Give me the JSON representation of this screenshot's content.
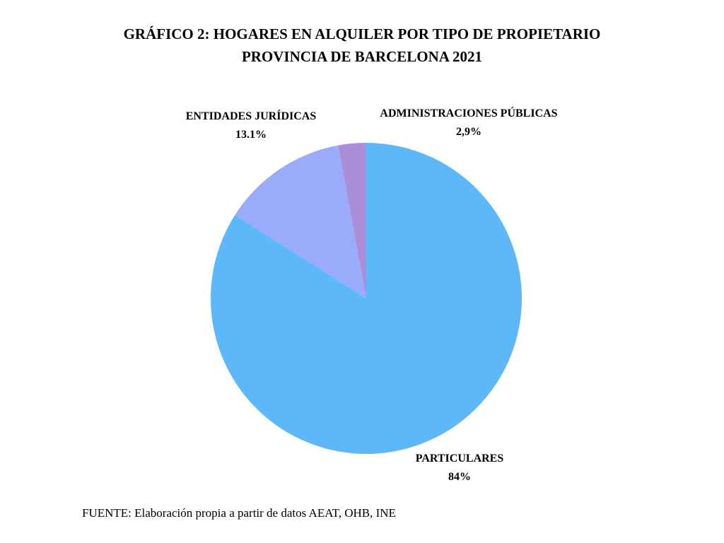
{
  "chart_data": {
    "type": "pie",
    "title": [
      "GRÁFICO 2: HOGARES EN ALQUILER POR TIPO DE PROPIETARIO",
      "PROVINCIA DE BARCELONA 2021"
    ],
    "start_angle_deg": 0,
    "direction": "clockwise",
    "slices": [
      {
        "name": "PARTICULARES",
        "value": 84,
        "label_value": "84%",
        "color": "#5cb8f8"
      },
      {
        "name": "ENTIDADES JURÍDICAS",
        "value": 13.1,
        "label_value": "13.1%",
        "color": "#9aabfb"
      },
      {
        "name": "ADMINISTRACIONES PÚBLICAS",
        "value": 2.9,
        "label_value": "2,9%",
        "color": "#aa8ed8"
      }
    ]
  },
  "source": "FUENTE: Elaboración propia a partir de datos AEAT, OHB, INE"
}
